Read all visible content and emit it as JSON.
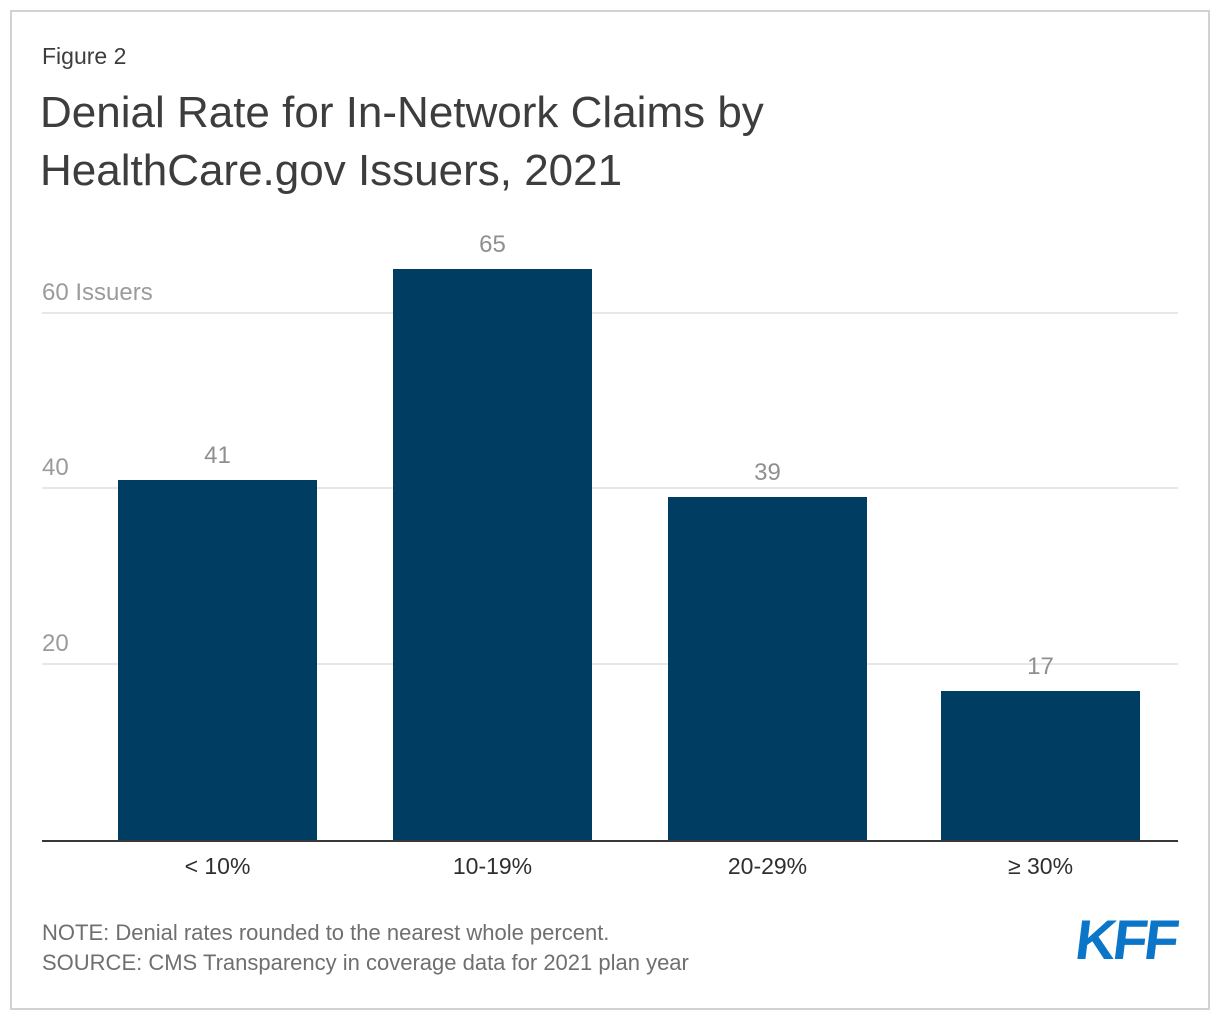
{
  "figure": {
    "label": "Figure 2",
    "title": "Denial Rate for In-Network Claims by\nHealthCare.gov Issuers, 2021"
  },
  "chart_data": {
    "type": "bar",
    "title": "Denial Rate for In-Network Claims by HealthCare.gov Issuers, 2021",
    "categories": [
      "< 10%",
      "10-19%",
      "20-29%",
      "≥ 30%"
    ],
    "values": [
      41,
      65,
      39,
      17
    ],
    "xlabel": "",
    "ylabel": "Issuers",
    "ylim": [
      0,
      70
    ],
    "yticks": [
      {
        "value": 20,
        "label": "20"
      },
      {
        "value": 40,
        "label": "40"
      },
      {
        "value": 60,
        "label": "60 Issuers"
      }
    ],
    "grid": true,
    "legend": false,
    "value_labels_shown": true,
    "bar_color": "#003d63",
    "value_label_color": "#8f8f8f",
    "tick_label_color": "#9b9b9b",
    "axis_line_color": "#383838"
  },
  "footer": {
    "note": "NOTE: Denial rates rounded to the nearest whole percent.",
    "source": "SOURCE: CMS Transparency in coverage data for 2021 plan year",
    "logo_text": "KFF",
    "logo_color": "#0b76c8"
  }
}
